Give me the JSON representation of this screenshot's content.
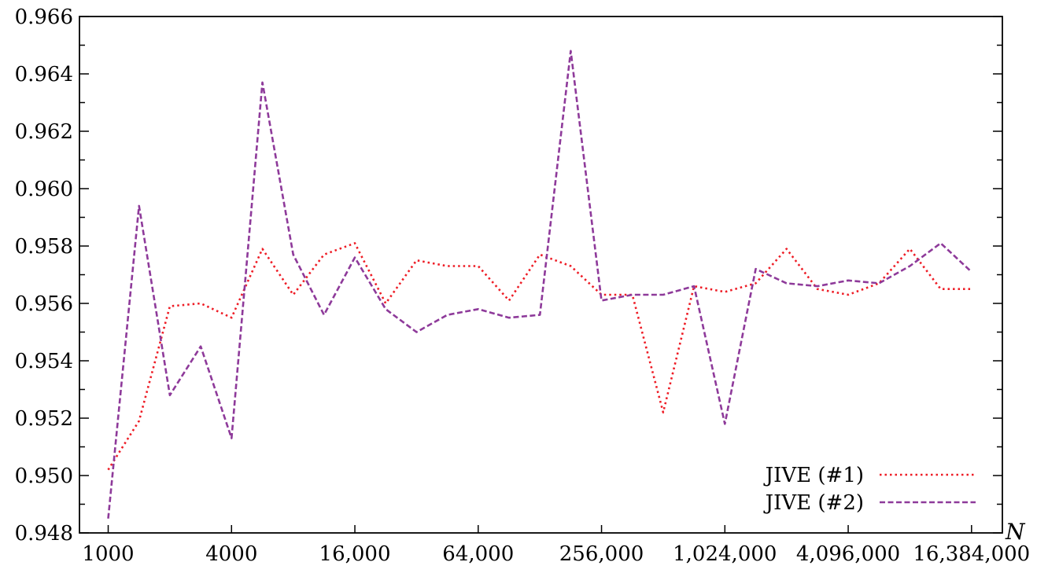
{
  "chart_data": {
    "type": "line",
    "xlabel": "N",
    "ylabel": "",
    "x_scale": "log2",
    "xlim": [
      724,
      23170475
    ],
    "ylim": [
      0.948,
      0.966
    ],
    "x": [
      1000,
      1414,
      2000,
      2828,
      4000,
      5657,
      8000,
      11314,
      16000,
      22627,
      32000,
      45255,
      64000,
      90510,
      128000,
      181019,
      256000,
      362039,
      512000,
      724077,
      1024000,
      1448155,
      2048000,
      2896309,
      4096000,
      5792619,
      8192000,
      11585237,
      16384000
    ],
    "x_ticks": [
      1000,
      4000,
      16000,
      64000,
      256000,
      1024000,
      4096000,
      16384000
    ],
    "x_tick_labels": [
      "1000",
      "4000",
      "16,000",
      "64,000",
      "256,000",
      "1,024,000",
      "4,096,000",
      "16,384,000"
    ],
    "y_ticks": [
      0.948,
      0.95,
      0.952,
      0.954,
      0.956,
      0.958,
      0.96,
      0.962,
      0.964,
      0.966
    ],
    "y_tick_labels": [
      "0.948",
      "0.950",
      "0.952",
      "0.954",
      "0.956",
      "0.958",
      "0.960",
      "0.962",
      "0.964",
      "0.966"
    ],
    "legend_position": "bottom-right",
    "grid": false,
    "series": [
      {
        "name": "JIVE (#1)",
        "color": "#ee1c25",
        "style": "dotted",
        "values": [
          0.9502,
          0.9519,
          0.9559,
          0.956,
          0.9555,
          0.9579,
          0.9563,
          0.9577,
          0.9581,
          0.956,
          0.9575,
          0.9573,
          0.9573,
          0.9561,
          0.9577,
          0.9573,
          0.9563,
          0.9563,
          0.9522,
          0.9566,
          0.9564,
          0.9567,
          0.9579,
          0.9565,
          0.9563,
          0.9567,
          0.9579,
          0.9565,
          0.9565
        ]
      },
      {
        "name": "JIVE (#2)",
        "color": "#8e3a9a",
        "style": "dashed",
        "values": [
          0.9485,
          0.9594,
          0.9528,
          0.9545,
          0.9513,
          0.9637,
          0.9577,
          0.9556,
          0.9576,
          0.9558,
          0.955,
          0.9556,
          0.9558,
          0.9555,
          0.9556,
          0.9648,
          0.9561,
          0.9563,
          0.9563,
          0.9566,
          0.9518,
          0.9572,
          0.9567,
          0.9566,
          0.9568,
          0.9567,
          0.9573,
          0.9581,
          0.9571
        ]
      }
    ]
  }
}
